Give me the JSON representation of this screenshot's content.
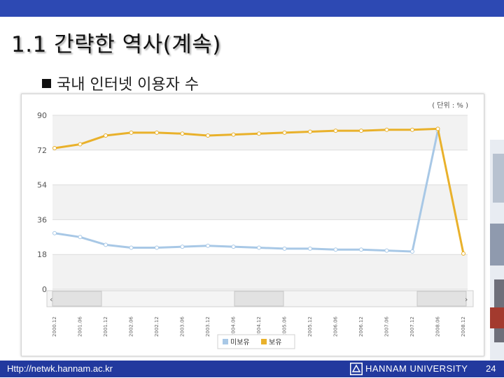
{
  "slide": {
    "title": "1.1 간략한 역사(계속)",
    "subtitle": "국내 인터넷 이용자 수",
    "footer_url": "Http://netwk.hannam.ac.kr",
    "footer_university": "HANNAM UNIVERSITY",
    "page_number": "24"
  },
  "colors": {
    "header_bar": "#2d49b3",
    "footer_bar": "#22399e",
    "series_non_owner": "#a8c8e6",
    "series_owner": "#e9b12b"
  },
  "chart_data": {
    "type": "line",
    "unit_label": "( 단위 : % )",
    "x": [
      "2000.12",
      "2001.06",
      "2001.12",
      "2002.06",
      "2002.12",
      "2003.06",
      "2003.12",
      "2004.06",
      "2004.12",
      "2005.06",
      "2005.12",
      "2006.06",
      "2006.12",
      "2007.06",
      "2007.12",
      "2008.06",
      "2008.12"
    ],
    "ylim": [
      0,
      90
    ],
    "yticks": [
      "0",
      "18",
      "36",
      "54",
      "72",
      "90"
    ],
    "grid": true,
    "legend_position": "bottom",
    "series": [
      {
        "name": "미보유",
        "color": "#a8c8e6",
        "values": [
          29,
          27,
          23,
          21.5,
          21.5,
          22,
          22.5,
          22,
          21.5,
          21,
          21,
          20.5,
          20.5,
          20,
          19.5,
          82,
          null
        ]
      },
      {
        "name": "보유",
        "color": "#e9b12b",
        "values": [
          73,
          75,
          79.5,
          81,
          81,
          80.5,
          79.5,
          80,
          80.5,
          81,
          81.5,
          82,
          82,
          82.5,
          82.5,
          83,
          18.5
        ]
      }
    ]
  }
}
